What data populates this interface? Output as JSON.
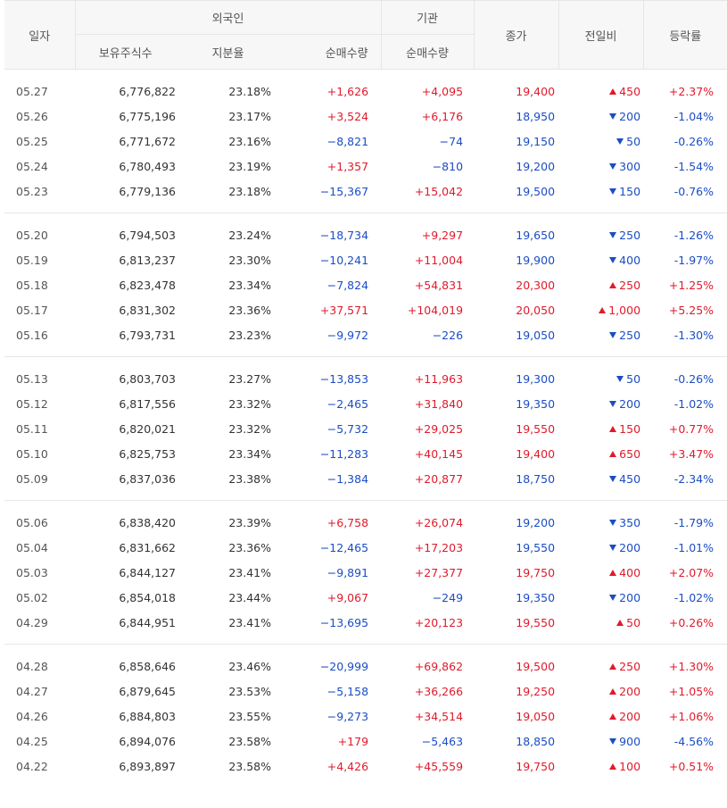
{
  "header": {
    "date": "일자",
    "foreign": "외국인",
    "institution": "기관",
    "close": "종가",
    "change": "전일비",
    "rate": "등락률",
    "holdings": "보유주식수",
    "ratio": "지분율",
    "foreign_net": "순매수량",
    "inst_net": "순매수량"
  },
  "colors": {
    "up": "#e01a2b",
    "down": "#1b4dc4"
  },
  "groups": [
    [
      {
        "date": "05.27",
        "hold": "6,776,822",
        "ratio": "23.18%",
        "fnet": "+1,626",
        "inet": "+4,095",
        "close": "19,400",
        "dir": "up",
        "chg": "450",
        "rate": "+2.37%"
      },
      {
        "date": "05.26",
        "hold": "6,775,196",
        "ratio": "23.17%",
        "fnet": "+3,524",
        "inet": "+6,176",
        "close": "18,950",
        "dir": "dn",
        "chg": "200",
        "rate": "-1.04%"
      },
      {
        "date": "05.25",
        "hold": "6,771,672",
        "ratio": "23.16%",
        "fnet": "−8,821",
        "inet": "−74",
        "close": "19,150",
        "dir": "dn",
        "chg": "50",
        "rate": "-0.26%"
      },
      {
        "date": "05.24",
        "hold": "6,780,493",
        "ratio": "23.19%",
        "fnet": "+1,357",
        "inet": "−810",
        "close": "19,200",
        "dir": "dn",
        "chg": "300",
        "rate": "-1.54%"
      },
      {
        "date": "05.23",
        "hold": "6,779,136",
        "ratio": "23.18%",
        "fnet": "−15,367",
        "inet": "+15,042",
        "close": "19,500",
        "dir": "dn",
        "chg": "150",
        "rate": "-0.76%"
      }
    ],
    [
      {
        "date": "05.20",
        "hold": "6,794,503",
        "ratio": "23.24%",
        "fnet": "−18,734",
        "inet": "+9,297",
        "close": "19,650",
        "dir": "dn",
        "chg": "250",
        "rate": "-1.26%"
      },
      {
        "date": "05.19",
        "hold": "6,813,237",
        "ratio": "23.30%",
        "fnet": "−10,241",
        "inet": "+11,004",
        "close": "19,900",
        "dir": "dn",
        "chg": "400",
        "rate": "-1.97%"
      },
      {
        "date": "05.18",
        "hold": "6,823,478",
        "ratio": "23.34%",
        "fnet": "−7,824",
        "inet": "+54,831",
        "close": "20,300",
        "dir": "up",
        "chg": "250",
        "rate": "+1.25%"
      },
      {
        "date": "05.17",
        "hold": "6,831,302",
        "ratio": "23.36%",
        "fnet": "+37,571",
        "inet": "+104,019",
        "close": "20,050",
        "dir": "up",
        "chg": "1,000",
        "rate": "+5.25%"
      },
      {
        "date": "05.16",
        "hold": "6,793,731",
        "ratio": "23.23%",
        "fnet": "−9,972",
        "inet": "−226",
        "close": "19,050",
        "dir": "dn",
        "chg": "250",
        "rate": "-1.30%"
      }
    ],
    [
      {
        "date": "05.13",
        "hold": "6,803,703",
        "ratio": "23.27%",
        "fnet": "−13,853",
        "inet": "+11,963",
        "close": "19,300",
        "dir": "dn",
        "chg": "50",
        "rate": "-0.26%"
      },
      {
        "date": "05.12",
        "hold": "6,817,556",
        "ratio": "23.32%",
        "fnet": "−2,465",
        "inet": "+31,840",
        "close": "19,350",
        "dir": "dn",
        "chg": "200",
        "rate": "-1.02%"
      },
      {
        "date": "05.11",
        "hold": "6,820,021",
        "ratio": "23.32%",
        "fnet": "−5,732",
        "inet": "+29,025",
        "close": "19,550",
        "dir": "up",
        "chg": "150",
        "rate": "+0.77%"
      },
      {
        "date": "05.10",
        "hold": "6,825,753",
        "ratio": "23.34%",
        "fnet": "−11,283",
        "inet": "+40,145",
        "close": "19,400",
        "dir": "up",
        "chg": "650",
        "rate": "+3.47%"
      },
      {
        "date": "05.09",
        "hold": "6,837,036",
        "ratio": "23.38%",
        "fnet": "−1,384",
        "inet": "+20,877",
        "close": "18,750",
        "dir": "dn",
        "chg": "450",
        "rate": "-2.34%"
      }
    ],
    [
      {
        "date": "05.06",
        "hold": "6,838,420",
        "ratio": "23.39%",
        "fnet": "+6,758",
        "inet": "+26,074",
        "close": "19,200",
        "dir": "dn",
        "chg": "350",
        "rate": "-1.79%"
      },
      {
        "date": "05.04",
        "hold": "6,831,662",
        "ratio": "23.36%",
        "fnet": "−12,465",
        "inet": "+17,203",
        "close": "19,550",
        "dir": "dn",
        "chg": "200",
        "rate": "-1.01%"
      },
      {
        "date": "05.03",
        "hold": "6,844,127",
        "ratio": "23.41%",
        "fnet": "−9,891",
        "inet": "+27,377",
        "close": "19,750",
        "dir": "up",
        "chg": "400",
        "rate": "+2.07%"
      },
      {
        "date": "05.02",
        "hold": "6,854,018",
        "ratio": "23.44%",
        "fnet": "+9,067",
        "inet": "−249",
        "close": "19,350",
        "dir": "dn",
        "chg": "200",
        "rate": "-1.02%"
      },
      {
        "date": "04.29",
        "hold": "6,844,951",
        "ratio": "23.41%",
        "fnet": "−13,695",
        "inet": "+20,123",
        "close": "19,550",
        "dir": "up",
        "chg": "50",
        "rate": "+0.26%"
      }
    ],
    [
      {
        "date": "04.28",
        "hold": "6,858,646",
        "ratio": "23.46%",
        "fnet": "−20,999",
        "inet": "+69,862",
        "close": "19,500",
        "dir": "up",
        "chg": "250",
        "rate": "+1.30%"
      },
      {
        "date": "04.27",
        "hold": "6,879,645",
        "ratio": "23.53%",
        "fnet": "−5,158",
        "inet": "+36,266",
        "close": "19,250",
        "dir": "up",
        "chg": "200",
        "rate": "+1.05%"
      },
      {
        "date": "04.26",
        "hold": "6,884,803",
        "ratio": "23.55%",
        "fnet": "−9,273",
        "inet": "+34,514",
        "close": "19,050",
        "dir": "up",
        "chg": "200",
        "rate": "+1.06%"
      },
      {
        "date": "04.25",
        "hold": "6,894,076",
        "ratio": "23.58%",
        "fnet": "+179",
        "inet": "−5,463",
        "close": "18,850",
        "dir": "dn",
        "chg": "900",
        "rate": "-4.56%"
      },
      {
        "date": "04.22",
        "hold": "6,893,897",
        "ratio": "23.58%",
        "fnet": "+4,426",
        "inet": "+45,559",
        "close": "19,750",
        "dir": "up",
        "chg": "100",
        "rate": "+0.51%"
      }
    ]
  ]
}
